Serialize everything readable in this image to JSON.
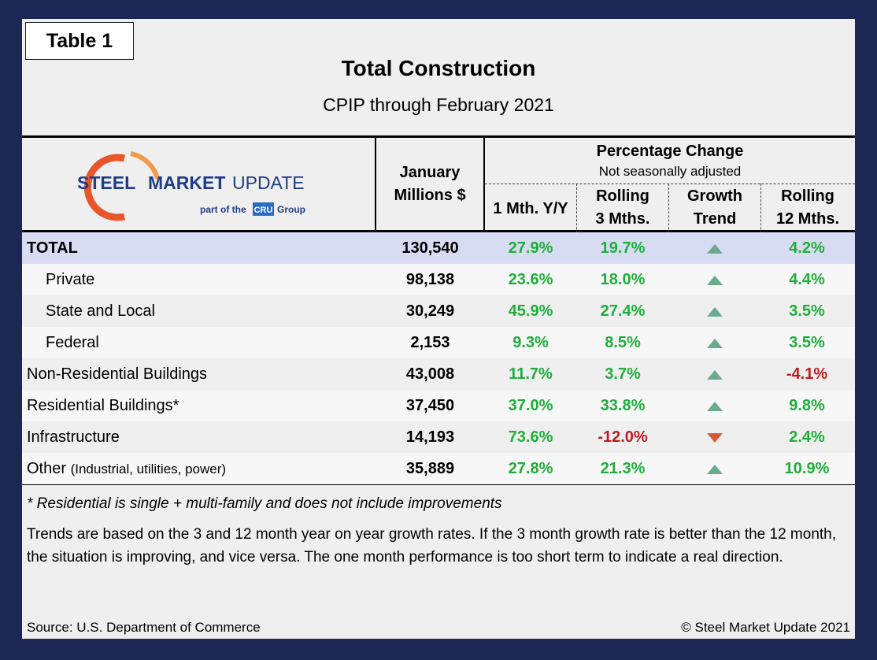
{
  "table_tag": "Table 1",
  "title": "Total Construction",
  "subtitle": "CPIP through February 2021",
  "logo": {
    "brand_steel": "STEEL",
    "brand_market": "MARKET",
    "brand_update": "UPDATE",
    "tagline_prefix": "part of the",
    "tagline_badge": "CRU",
    "tagline_suffix": "Group",
    "arc_color": "#e8562a"
  },
  "headers": {
    "january_line1": "January",
    "january_line2": "Millions $",
    "pct_change": "Percentage Change",
    "not_seasonal": "Not seasonally adjusted",
    "one_month": "1 Mth. Y/Y",
    "rolling3_line1": "Rolling",
    "rolling3_line2": "3 Mths.",
    "growth_line1": "Growth",
    "growth_line2": "Trend",
    "rolling12_line1": "Rolling",
    "rolling12_line2": "12 Mths."
  },
  "colors": {
    "positive": "#1fae3c",
    "negative": "#c0191f",
    "trend_up": "#6aab8e",
    "trend_down": "#d9583a"
  },
  "rows": [
    {
      "label": "TOTAL",
      "sub": "",
      "january": "130,540",
      "one_month": "27.9%",
      "rolling3": "19.7%",
      "trend": "up",
      "rolling12": "4.2%"
    },
    {
      "label": "Private",
      "sub": "",
      "january": "98,138",
      "one_month": "23.6%",
      "rolling3": "18.0%",
      "trend": "up",
      "rolling12": "4.4%"
    },
    {
      "label": "State and Local",
      "sub": "",
      "january": "30,249",
      "one_month": "45.9%",
      "rolling3": "27.4%",
      "trend": "up",
      "rolling12": "3.5%"
    },
    {
      "label": "Federal",
      "sub": "",
      "january": "2,153",
      "one_month": "9.3%",
      "rolling3": "8.5%",
      "trend": "up",
      "rolling12": "3.5%"
    },
    {
      "label": "Non-Residential Buildings",
      "sub": "",
      "january": "43,008",
      "one_month": "11.7%",
      "rolling3": "3.7%",
      "trend": "up",
      "rolling12": "-4.1%"
    },
    {
      "label": "Residential Buildings*",
      "sub": "",
      "january": "37,450",
      "one_month": "37.0%",
      "rolling3": "33.8%",
      "trend": "up",
      "rolling12": "9.8%"
    },
    {
      "label": "Infrastructure",
      "sub": "",
      "january": "14,193",
      "one_month": "73.6%",
      "rolling3": "-12.0%",
      "trend": "down",
      "rolling12": "2.4%"
    },
    {
      "label": "Other",
      "sub": "(Industrial, utilities, power)",
      "january": "35,889",
      "one_month": "27.8%",
      "rolling3": "21.3%",
      "trend": "up",
      "rolling12": "10.9%"
    }
  ],
  "footnote": "* Residential is single + multi-family and does not include improvements",
  "trends_note": "Trends are based on the 3 and 12 month year on year growth rates. If the 3 month growth rate is better than the 12 month, the situation is improving, and vice versa. The one month performance is too short term to indicate a real direction.",
  "source": "Source: U.S. Department of Commerce",
  "copyright": "© Steel Market Update 2021"
}
